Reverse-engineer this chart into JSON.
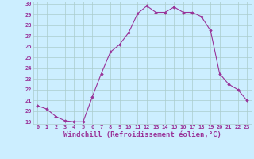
{
  "x": [
    0,
    1,
    2,
    3,
    4,
    5,
    6,
    7,
    8,
    9,
    10,
    11,
    12,
    13,
    14,
    15,
    16,
    17,
    18,
    19,
    20,
    21,
    22,
    23
  ],
  "y": [
    20.5,
    20.2,
    19.5,
    19.1,
    19.0,
    19.0,
    21.3,
    23.5,
    25.5,
    26.2,
    27.3,
    29.1,
    29.8,
    29.2,
    29.2,
    29.7,
    29.2,
    29.2,
    28.8,
    27.5,
    23.5,
    22.5,
    22.0,
    21.0
  ],
  "line_color": "#993399",
  "marker": "D",
  "marker_size": 1.8,
  "line_width": 0.8,
  "xlabel": "Windchill (Refroidissement éolien,°C)",
  "xlabel_fontsize": 6.5,
  "background_color": "#cceeff",
  "grid_color": "#aacccc",
  "tick_label_color": "#993399",
  "axis_label_color": "#993399",
  "ylim": [
    19,
    30
  ],
  "xlim": [
    -0.5,
    23.5
  ],
  "yticks": [
    19,
    20,
    21,
    22,
    23,
    24,
    25,
    26,
    27,
    28,
    29,
    30
  ],
  "xticks": [
    0,
    1,
    2,
    3,
    4,
    5,
    6,
    7,
    8,
    9,
    10,
    11,
    12,
    13,
    14,
    15,
    16,
    17,
    18,
    19,
    20,
    21,
    22,
    23
  ]
}
